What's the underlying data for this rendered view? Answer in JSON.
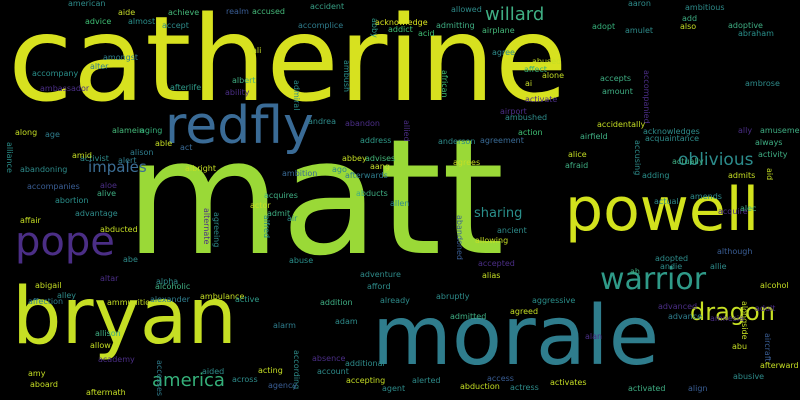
{
  "words": [
    {
      "text": "catherine",
      "color": "#d7e11f",
      "rot": 0
    },
    {
      "text": "matt",
      "color": "#9ad937",
      "rot": 0
    },
    {
      "text": "morale",
      "color": "#2f7d8d",
      "rot": 0
    },
    {
      "text": "bryan",
      "color": "#c6df24",
      "rot": 0
    },
    {
      "text": "powell",
      "color": "#d2e21d",
      "rot": 0
    },
    {
      "text": "redfly",
      "color": "#3a6b96",
      "rot": 0
    },
    {
      "text": "pope",
      "color": "#4b2e86",
      "rot": 0
    },
    {
      "text": "warrior",
      "color": "#2f9a88",
      "rot": 0
    },
    {
      "text": "dragon",
      "color": "#c6df24",
      "rot": 0
    },
    {
      "text": "america",
      "color": "#35b07a",
      "rot": 0
    },
    {
      "text": "willard",
      "color": "#3fae83",
      "rot": 0
    },
    {
      "text": "oblivious",
      "color": "#2c8c8c",
      "rot": 0
    },
    {
      "text": "impales",
      "color": "#3c6e95",
      "rot": 0
    },
    {
      "text": "sharing",
      "color": "#2a8f8b",
      "rot": 0
    },
    {
      "text": "american",
      "color": "#2e8b8a",
      "rot": 0
    },
    {
      "text": "advice",
      "color": "#3fbf74",
      "rot": 0
    },
    {
      "text": "aide",
      "color": "#c8de2a",
      "rot": 0
    },
    {
      "text": "almost",
      "color": "#2a8f8b",
      "rot": 0
    },
    {
      "text": "achieve",
      "color": "#45b97a",
      "rot": 0
    },
    {
      "text": "accept",
      "color": "#2e8b8a",
      "rot": 0
    },
    {
      "text": "realm",
      "color": "#3a5e95",
      "rot": 0
    },
    {
      "text": "accused",
      "color": "#45b97a",
      "rot": 0
    },
    {
      "text": "accident",
      "color": "#38a086",
      "rot": 0
    },
    {
      "text": "accomplice",
      "color": "#2f7d8d",
      "rot": 0
    },
    {
      "text": "abby",
      "color": "#2f9a88",
      "rot": 90
    },
    {
      "text": "acknowledge",
      "color": "#d7e11f",
      "rot": 0
    },
    {
      "text": "addict",
      "color": "#3fbf74",
      "rot": 0
    },
    {
      "text": "acid",
      "color": "#3fbf74",
      "rot": 0
    },
    {
      "text": "allowed",
      "color": "#2e8b8a",
      "rot": 0
    },
    {
      "text": "admitting",
      "color": "#3fae83",
      "rot": 0
    },
    {
      "text": "airplane",
      "color": "#45b97a",
      "rot": 0
    },
    {
      "text": "adopt",
      "color": "#35b07a",
      "rot": 0
    },
    {
      "text": "amulet",
      "color": "#2e8b8a",
      "rot": 0
    },
    {
      "text": "aaron",
      "color": "#2e8b8a",
      "rot": 0
    },
    {
      "text": "ambitious",
      "color": "#2e8b8a",
      "rot": 0
    },
    {
      "text": "add",
      "color": "#3fae83",
      "rot": 0
    },
    {
      "text": "also",
      "color": "#c6df24",
      "rot": 0
    },
    {
      "text": "adoptive",
      "color": "#3fae83",
      "rot": 0
    },
    {
      "text": "abraham",
      "color": "#2a8f8b",
      "rot": 0
    },
    {
      "text": "ali",
      "color": "#c8de2a",
      "rot": 0
    },
    {
      "text": "amongst",
      "color": "#2f7d8d",
      "rot": 0
    },
    {
      "text": "alter",
      "color": "#2f7d8d",
      "rot": 0
    },
    {
      "text": "accompany",
      "color": "#2a8f8b",
      "rot": 0
    },
    {
      "text": "albert",
      "color": "#3fae83",
      "rot": 0
    },
    {
      "text": "ambush",
      "color": "#2a8f8b",
      "rot": 90
    },
    {
      "text": "admiral",
      "color": "#2a8f8b",
      "rot": 90
    },
    {
      "text": "agree",
      "color": "#2e8b8a",
      "rot": 0
    },
    {
      "text": "abused",
      "color": "#c6df24",
      "rot": 0
    },
    {
      "text": "affect",
      "color": "#35b07a",
      "rot": 0
    },
    {
      "text": "alone",
      "color": "#c6df24",
      "rot": 0
    },
    {
      "text": "african",
      "color": "#3fbf74",
      "rot": 90
    },
    {
      "text": "ai",
      "color": "#c8de2a",
      "rot": 0
    },
    {
      "text": "accepts",
      "color": "#3fae83",
      "rot": 0
    },
    {
      "text": "amount",
      "color": "#3fae83",
      "rot": 0
    },
    {
      "text": "accompanied",
      "color": "#4b2e86",
      "rot": 90
    },
    {
      "text": "ambrose",
      "color": "#2e8b8a",
      "rot": 0
    },
    {
      "text": "ambassador",
      "color": "#4b2e86",
      "rot": 0
    },
    {
      "text": "afterlife",
      "color": "#2f9a88",
      "rot": 0
    },
    {
      "text": "ability",
      "color": "#4b2e86",
      "rot": 0
    },
    {
      "text": "activate",
      "color": "#4b2e86",
      "rot": 0
    },
    {
      "text": "airport",
      "color": "#4b2e86",
      "rot": 0
    },
    {
      "text": "ambushed",
      "color": "#2e8b8a",
      "rot": 0
    },
    {
      "text": "accidentally",
      "color": "#c6df24",
      "rot": 0
    },
    {
      "text": "acknowledges",
      "color": "#2e8b8a",
      "rot": 0
    },
    {
      "text": "acquaintance",
      "color": "#2e8b8a",
      "rot": 0
    },
    {
      "text": "amusement",
      "color": "#3fae83",
      "rot": 0
    },
    {
      "text": "ally",
      "color": "#4b2e86",
      "rot": 0
    },
    {
      "text": "always",
      "color": "#3fae83",
      "rot": 0
    },
    {
      "text": "activity",
      "color": "#3fae83",
      "rot": 0
    },
    {
      "text": "along",
      "color": "#c6df24",
      "rot": 0
    },
    {
      "text": "age",
      "color": "#2f7d8d",
      "rot": 0
    },
    {
      "text": "alamein",
      "color": "#45b97a",
      "rot": 0
    },
    {
      "text": "aging",
      "color": "#35b07a",
      "rot": 0
    },
    {
      "text": "andrea",
      "color": "#2e8b8a",
      "rot": 0
    },
    {
      "text": "abandon",
      "color": "#4b2e86",
      "rot": 0
    },
    {
      "text": "address",
      "color": "#2f9a88",
      "rot": 0
    },
    {
      "text": "allied",
      "color": "#4b2e86",
      "rot": 90
    },
    {
      "text": "anderson",
      "color": "#2e8b8a",
      "rot": 0
    },
    {
      "text": "agreement",
      "color": "#3a6b96",
      "rot": 0
    },
    {
      "text": "action",
      "color": "#3fbf74",
      "rot": 0
    },
    {
      "text": "airfield",
      "color": "#3fae83",
      "rot": 0
    },
    {
      "text": "alliance",
      "color": "#2a8f8b",
      "rot": 90
    },
    {
      "text": "abandoning",
      "color": "#2e8b8a",
      "rot": 0
    },
    {
      "text": "activist",
      "color": "#2e8b8a",
      "rot": 0
    },
    {
      "text": "alert",
      "color": "#2f7d8d",
      "rot": 0
    },
    {
      "text": "able",
      "color": "#c6df24",
      "rot": 0
    },
    {
      "text": "act",
      "color": "#3a6b96",
      "rot": 0
    },
    {
      "text": "albright",
      "color": "#c6df24",
      "rot": 0
    },
    {
      "text": "alison",
      "color": "#2f7d8d",
      "rot": 0
    },
    {
      "text": "abbey",
      "color": "#c6df24",
      "rot": 0
    },
    {
      "text": "advises",
      "color": "#45b97a",
      "rot": 0
    },
    {
      "text": "aang",
      "color": "#c8de2a",
      "rot": 0
    },
    {
      "text": "ago",
      "color": "#2e8b8a",
      "rot": 0
    },
    {
      "text": "afterwards",
      "color": "#2f7d8d",
      "rot": 0
    },
    {
      "text": "ambition",
      "color": "#3a6b96",
      "rot": 0
    },
    {
      "text": "agrees",
      "color": "#c6df24",
      "rot": 0
    },
    {
      "text": "alice",
      "color": "#c6df24",
      "rot": 0
    },
    {
      "text": "afraid",
      "color": "#3fae83",
      "rot": 0
    },
    {
      "text": "accusing",
      "color": "#2e8b8a",
      "rot": 90
    },
    {
      "text": "actually",
      "color": "#3fae83",
      "rot": 0
    },
    {
      "text": "adding",
      "color": "#2a8f8b",
      "rot": 0
    },
    {
      "text": "admits",
      "color": "#c6df24",
      "rot": 0
    },
    {
      "text": "aid",
      "color": "#c6df24",
      "rot": 90
    },
    {
      "text": "amid",
      "color": "#c6df24",
      "rot": 0
    },
    {
      "text": "accompanies",
      "color": "#3a5e95",
      "rot": 0
    },
    {
      "text": "aloe",
      "color": "#4b2e86",
      "rot": 0
    },
    {
      "text": "alive",
      "color": "#3fae83",
      "rot": 0
    },
    {
      "text": "acquires",
      "color": "#3fae83",
      "rot": 0
    },
    {
      "text": "abducts",
      "color": "#3fae83",
      "rot": 0
    },
    {
      "text": "actual",
      "color": "#2e8b8a",
      "rot": 0
    },
    {
      "text": "amends",
      "color": "#2e8b8a",
      "rot": 0
    },
    {
      "text": "acquire",
      "color": "#4b2e86",
      "rot": 0
    },
    {
      "text": "alec",
      "color": "#3fae83",
      "rot": 0
    },
    {
      "text": "abortion",
      "color": "#2a8f8b",
      "rot": 0
    },
    {
      "text": "advantage",
      "color": "#2e8b8a",
      "rot": 0
    },
    {
      "text": "alternate",
      "color": "#4b2e86",
      "rot": 90
    },
    {
      "text": "agreeing",
      "color": "#2e8b8a",
      "rot": 90
    },
    {
      "text": "actor",
      "color": "#c6df24",
      "rot": 0
    },
    {
      "text": "admit",
      "color": "#3fae83",
      "rot": 0
    },
    {
      "text": "alfred",
      "color": "#2a8f8b",
      "rot": 90
    },
    {
      "text": "air",
      "color": "#2a8f8b",
      "rot": 0
    },
    {
      "text": "allen",
      "color": "#2e8b8a",
      "rot": 0
    },
    {
      "text": "abandoned",
      "color": "#3a5e95",
      "rot": 90
    },
    {
      "text": "ancient",
      "color": "#2e8b8a",
      "rot": 0
    },
    {
      "text": "allowing",
      "color": "#c6df24",
      "rot": 0
    },
    {
      "text": "affair",
      "color": "#c6df24",
      "rot": 0
    },
    {
      "text": "abducted",
      "color": "#c6df24",
      "rot": 0
    },
    {
      "text": "adopted",
      "color": "#2e8b8a",
      "rot": 0
    },
    {
      "text": "andie",
      "color": "#2e8b8a",
      "rot": 0
    },
    {
      "text": "allie",
      "color": "#2e8b8a",
      "rot": 0
    },
    {
      "text": "although",
      "color": "#3a5e95",
      "rot": 0
    },
    {
      "text": "abe",
      "color": "#2e8b8a",
      "rot": 0
    },
    {
      "text": "alpha",
      "color": "#2e8b8a",
      "rot": 0
    },
    {
      "text": "abuse",
      "color": "#2a8f8b",
      "rot": 0
    },
    {
      "text": "accepted",
      "color": "#4b2e86",
      "rot": 0
    },
    {
      "text": "ah",
      "color": "#3fae83",
      "rot": 0
    },
    {
      "text": "abigail",
      "color": "#c6df24",
      "rot": 0
    },
    {
      "text": "altar",
      "color": "#4b2e86",
      "rot": 0
    },
    {
      "text": "alcoholic",
      "color": "#3fae83",
      "rot": 0
    },
    {
      "text": "adventure",
      "color": "#2e8b8a",
      "rot": 0
    },
    {
      "text": "afford",
      "color": "#2e8b8a",
      "rot": 0
    },
    {
      "text": "alias",
      "color": "#c6df24",
      "rot": 0
    },
    {
      "text": "alley",
      "color": "#2e8b8a",
      "rot": 0
    },
    {
      "text": "ambulance",
      "color": "#c6df24",
      "rot": 0
    },
    {
      "text": "alcohol",
      "color": "#c6df24",
      "rot": 0
    },
    {
      "text": "affection",
      "color": "#2f7d8d",
      "rot": 0
    },
    {
      "text": "ammunition",
      "color": "#c6df24",
      "rot": 0
    },
    {
      "text": "alexander",
      "color": "#2f7d8d",
      "rot": 0
    },
    {
      "text": "active",
      "color": "#2f9a88",
      "rot": 0
    },
    {
      "text": "addition",
      "color": "#3fae83",
      "rot": 0
    },
    {
      "text": "already",
      "color": "#2e8b8a",
      "rot": 0
    },
    {
      "text": "abruptly",
      "color": "#2e8b8a",
      "rot": 0
    },
    {
      "text": "aggressive",
      "color": "#2a8f8b",
      "rot": 0
    },
    {
      "text": "advanced",
      "color": "#4b2e86",
      "rot": 0
    },
    {
      "text": "alongside",
      "color": "#c6df24",
      "rot": 90
    },
    {
      "text": "adult",
      "color": "#4b2e86",
      "rot": 0
    },
    {
      "text": "agreed",
      "color": "#c6df24",
      "rot": 0
    },
    {
      "text": "admitted",
      "color": "#3fae83",
      "rot": 0
    },
    {
      "text": "advance",
      "color": "#2f7d8d",
      "rot": 0
    },
    {
      "text": "amnesia",
      "color": "#4b2e86",
      "rot": 0
    },
    {
      "text": "adam",
      "color": "#2e8b8a",
      "rot": 0
    },
    {
      "text": "alarm",
      "color": "#2f7d8d",
      "rot": 0
    },
    {
      "text": "allison",
      "color": "#3fae83",
      "rot": 0
    },
    {
      "text": "allow",
      "color": "#c6df24",
      "rot": 0
    },
    {
      "text": "aircraft",
      "color": "#3a5e95",
      "rot": 90
    },
    {
      "text": "alan",
      "color": "#4b2e86",
      "rot": 0
    },
    {
      "text": "academy",
      "color": "#4b2e86",
      "rot": 0
    },
    {
      "text": "accesses",
      "color": "#2f7d8d",
      "rot": 90
    },
    {
      "text": "according",
      "color": "#2e8b8a",
      "rot": 90
    },
    {
      "text": "absence",
      "color": "#4b2e86",
      "rot": 0
    },
    {
      "text": "additional",
      "color": "#2e8b8a",
      "rot": 0
    },
    {
      "text": "abu",
      "color": "#c6df24",
      "rot": 0
    },
    {
      "text": "afterward",
      "color": "#c6df24",
      "rot": 0
    },
    {
      "text": "abusive",
      "color": "#2e8b8a",
      "rot": 0
    },
    {
      "text": "amy",
      "color": "#c6df24",
      "rot": 0
    },
    {
      "text": "aided",
      "color": "#2e8b8a",
      "rot": 0
    },
    {
      "text": "acting",
      "color": "#c6df24",
      "rot": 0
    },
    {
      "text": "account",
      "color": "#2e8b8a",
      "rot": 0
    },
    {
      "text": "accepting",
      "color": "#c6df24",
      "rot": 0
    },
    {
      "text": "alerted",
      "color": "#2e8b8a",
      "rot": 0
    },
    {
      "text": "access",
      "color": "#3a5e95",
      "rot": 0
    },
    {
      "text": "aboard",
      "color": "#c6df24",
      "rot": 0
    },
    {
      "text": "across",
      "color": "#2e8b8a",
      "rot": 0
    },
    {
      "text": "agency",
      "color": "#3a5e95",
      "rot": 0
    },
    {
      "text": "agent",
      "color": "#2e8b8a",
      "rot": 0
    },
    {
      "text": "abduction",
      "color": "#c6df24",
      "rot": 0
    },
    {
      "text": "actress",
      "color": "#2e8b8a",
      "rot": 0
    },
    {
      "text": "activates",
      "color": "#c6df24",
      "rot": 0
    },
    {
      "text": "aftermath",
      "color": "#c6df24",
      "rot": 0
    },
    {
      "text": "activated",
      "color": "#3fae83",
      "rot": 0
    },
    {
      "text": "align",
      "color": "#3a5e95",
      "rot": 0
    }
  ]
}
